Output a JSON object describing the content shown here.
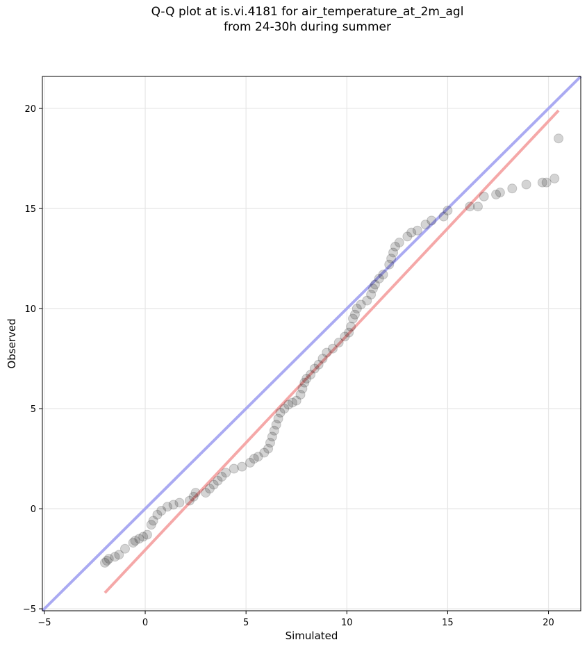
{
  "chart_data": {
    "type": "scatter",
    "title_line1": "Q-Q plot at is.vi.4181 for air_temperature_at_2m_agl",
    "title_line2": "from 24-30h during summer",
    "xlabel": "Simulated",
    "ylabel": "Observed",
    "xlim": [
      -5.1,
      21.6
    ],
    "ylim": [
      -5.1,
      21.6
    ],
    "xticks": [
      -5,
      0,
      5,
      10,
      15,
      20
    ],
    "yticks": [
      -5,
      0,
      5,
      10,
      15,
      20
    ],
    "xtick_labels": [
      "−5",
      "0",
      "5",
      "10",
      "15",
      "20"
    ],
    "ytick_labels": [
      "−5",
      "0",
      "5",
      "10",
      "15",
      "20"
    ],
    "grid": true,
    "lines": [
      {
        "color": "#aaaaf2",
        "points": [
          [
            -5.1,
            -5.1
          ],
          [
            21.6,
            21.6
          ]
        ]
      },
      {
        "color": "#f5a8a8",
        "points": [
          [
            -2.0,
            -4.2
          ],
          [
            20.5,
            19.9
          ]
        ]
      }
    ],
    "point_color": "#000000",
    "points": [
      [
        -2.0,
        -2.7
      ],
      [
        -1.9,
        -2.6
      ],
      [
        -1.8,
        -2.5
      ],
      [
        -1.5,
        -2.4
      ],
      [
        -1.3,
        -2.3
      ],
      [
        -1.0,
        -2.0
      ],
      [
        -0.6,
        -1.7
      ],
      [
        -0.5,
        -1.6
      ],
      [
        -0.3,
        -1.5
      ],
      [
        -0.1,
        -1.4
      ],
      [
        0.1,
        -1.3
      ],
      [
        0.3,
        -0.8
      ],
      [
        0.4,
        -0.6
      ],
      [
        0.6,
        -0.3
      ],
      [
        0.8,
        -0.1
      ],
      [
        1.1,
        0.1
      ],
      [
        1.4,
        0.2
      ],
      [
        1.7,
        0.3
      ],
      [
        2.2,
        0.4
      ],
      [
        2.4,
        0.6
      ],
      [
        2.5,
        0.8
      ],
      [
        3.0,
        0.8
      ],
      [
        3.2,
        1.0
      ],
      [
        3.4,
        1.2
      ],
      [
        3.6,
        1.4
      ],
      [
        3.8,
        1.6
      ],
      [
        4.0,
        1.8
      ],
      [
        4.4,
        2.0
      ],
      [
        4.8,
        2.1
      ],
      [
        5.2,
        2.3
      ],
      [
        5.4,
        2.5
      ],
      [
        5.6,
        2.6
      ],
      [
        5.9,
        2.8
      ],
      [
        6.1,
        3.0
      ],
      [
        6.2,
        3.3
      ],
      [
        6.3,
        3.6
      ],
      [
        6.4,
        3.9
      ],
      [
        6.5,
        4.2
      ],
      [
        6.6,
        4.5
      ],
      [
        6.7,
        4.8
      ],
      [
        6.9,
        5.0
      ],
      [
        7.1,
        5.2
      ],
      [
        7.3,
        5.3
      ],
      [
        7.5,
        5.4
      ],
      [
        7.7,
        5.7
      ],
      [
        7.8,
        6.0
      ],
      [
        7.9,
        6.3
      ],
      [
        8.0,
        6.5
      ],
      [
        8.2,
        6.7
      ],
      [
        8.4,
        7.0
      ],
      [
        8.6,
        7.2
      ],
      [
        8.8,
        7.5
      ],
      [
        9.0,
        7.8
      ],
      [
        9.3,
        8.0
      ],
      [
        9.6,
        8.3
      ],
      [
        9.9,
        8.6
      ],
      [
        10.1,
        8.8
      ],
      [
        10.2,
        9.1
      ],
      [
        10.3,
        9.5
      ],
      [
        10.4,
        9.7
      ],
      [
        10.5,
        10.0
      ],
      [
        10.7,
        10.2
      ],
      [
        11.0,
        10.4
      ],
      [
        11.2,
        10.7
      ],
      [
        11.3,
        11.0
      ],
      [
        11.4,
        11.2
      ],
      [
        11.6,
        11.5
      ],
      [
        11.8,
        11.7
      ],
      [
        12.1,
        12.2
      ],
      [
        12.2,
        12.5
      ],
      [
        12.3,
        12.8
      ],
      [
        12.4,
        13.1
      ],
      [
        12.6,
        13.3
      ],
      [
        13.0,
        13.6
      ],
      [
        13.2,
        13.8
      ],
      [
        13.5,
        13.9
      ],
      [
        13.9,
        14.2
      ],
      [
        14.2,
        14.4
      ],
      [
        14.8,
        14.6
      ],
      [
        15.0,
        14.9
      ],
      [
        16.1,
        15.1
      ],
      [
        16.5,
        15.1
      ],
      [
        16.8,
        15.6
      ],
      [
        17.4,
        15.7
      ],
      [
        17.6,
        15.8
      ],
      [
        18.2,
        16.0
      ],
      [
        18.9,
        16.2
      ],
      [
        19.7,
        16.3
      ],
      [
        19.9,
        16.3
      ],
      [
        20.3,
        16.5
      ],
      [
        20.5,
        18.5
      ]
    ]
  }
}
